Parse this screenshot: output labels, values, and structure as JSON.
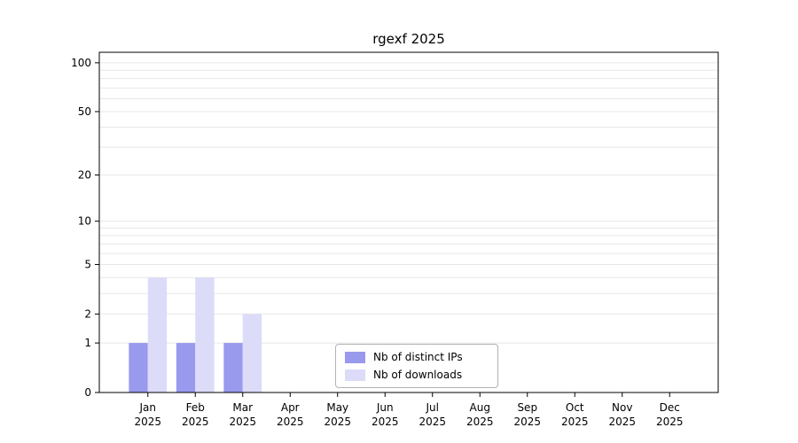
{
  "chart_data": {
    "type": "bar",
    "title": "rgexf 2025",
    "scale": "log10(1+x)",
    "categories": [
      "Jan",
      "Feb",
      "Mar",
      "Apr",
      "May",
      "Jun",
      "Jul",
      "Aug",
      "Sep",
      "Oct",
      "Nov",
      "Dec"
    ],
    "category_year": "2025",
    "series": [
      {
        "name": "Nb of distinct IPs",
        "color": "#9999ee",
        "values": [
          1,
          1,
          1,
          0,
          0,
          0,
          0,
          0,
          0,
          0,
          0,
          0
        ]
      },
      {
        "name": "Nb of downloads",
        "color": "#dcdcf8",
        "values": [
          4,
          4,
          2,
          0,
          0,
          0,
          0,
          0,
          0,
          0,
          0,
          0
        ]
      }
    ],
    "yticks": [
      0,
      1,
      2,
      5,
      10,
      20,
      50,
      100
    ],
    "gridline_values": [
      1,
      2,
      3,
      4,
      5,
      6,
      7,
      8,
      9,
      10,
      20,
      30,
      40,
      50,
      60,
      70,
      80,
      90,
      100
    ],
    "ylim": [
      0,
      116
    ],
    "grid": true,
    "legend_position": "inside-bottom-center"
  },
  "colors": {
    "gridline": "#e7e7e7",
    "axis": "#000000",
    "background": "#ffffff",
    "legend_border": "#b3b3b3"
  }
}
